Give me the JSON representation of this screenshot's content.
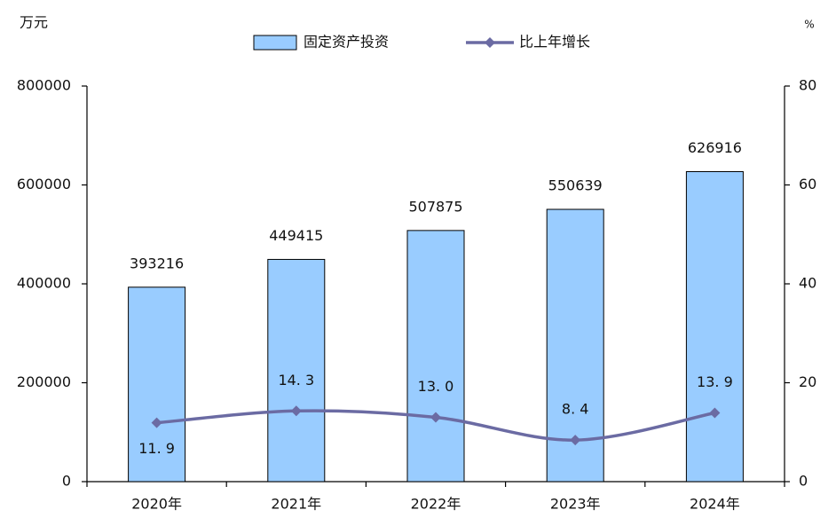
{
  "chart_data": {
    "type": "bar-line",
    "y_label": "万元",
    "y2_label": "%",
    "categories": [
      "2020年",
      "2021年",
      "2022年",
      "2023年",
      "2024年"
    ],
    "series": [
      {
        "name": "固定资产投资",
        "type": "bar",
        "color": "#99ccff",
        "values": [
          393216,
          449415,
          507875,
          550639,
          626916
        ]
      },
      {
        "name": "比上年增长",
        "type": "line",
        "axis": "y2",
        "color": "#6b6ba3",
        "values": [
          11.9,
          14.3,
          13.0,
          8.4,
          13.9
        ],
        "value_labels": [
          "11. 9",
          "14. 3",
          "13. 0",
          "8. 4",
          "13. 9"
        ]
      }
    ],
    "ylim": [
      0,
      800000
    ],
    "yticks": [
      0,
      200000,
      400000,
      600000,
      800000
    ],
    "y2lim": [
      0,
      80
    ],
    "y2ticks": [
      0,
      20,
      40,
      60,
      80
    ]
  }
}
